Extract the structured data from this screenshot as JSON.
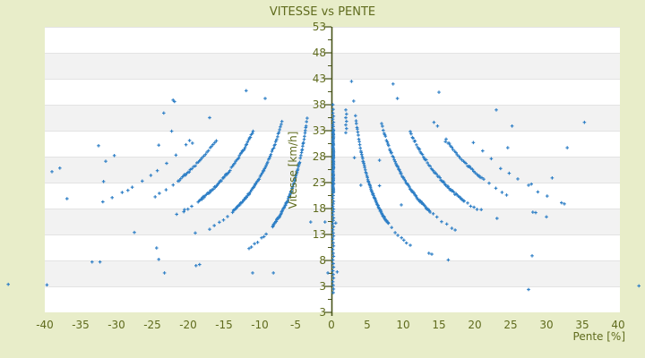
{
  "title": "VITESSE vs PENTE",
  "chart_data": {
    "type": "scatter",
    "title": "VITESSE vs PENTE",
    "xlabel": "Pente [%]",
    "ylabel": "Vitesse [km/h]",
    "xlim": [
      -40,
      40.3
    ],
    "ylim": [
      -2,
      53
    ],
    "grid": "horizontal-stripes",
    "legend": "none",
    "x_ticks": [
      "-40",
      "-35",
      "-30",
      "-25",
      "-20",
      "-15",
      "-10",
      "-5",
      "0",
      "5",
      "10",
      "15",
      "20",
      "25",
      "30",
      "35",
      "40"
    ],
    "y_tick_labels": [
      "53",
      "48",
      "43",
      "38",
      "33",
      "28",
      "23",
      "18",
      "13",
      "8",
      "3",
      "3"
    ],
    "marker": {
      "shape": "plus",
      "color": "#2e7fc6",
      "size": 4
    },
    "colors": {
      "background": "#e8edc9",
      "stripe_a": "#ffffff",
      "stripe_b": "#f2f2f2",
      "stripe_line": "#e3e3e3",
      "axis_line": "#4954142",
      "text": "#5f6b1d"
    },
    "series": [
      {
        "name": "pente-zero-column-dense",
        "column": {
          "x": 0.25,
          "v1": 21.0,
          "v2": 33.5,
          "step": 0.22,
          "xjitter": 0.12,
          "seed": 5
        }
      },
      {
        "name": "pente-zero-column-sparse",
        "points": [
          [
            0.2,
            38
          ],
          [
            0.25,
            37.1
          ],
          [
            0.2,
            36.4
          ],
          [
            0.3,
            35.8
          ],
          [
            0.2,
            35.2
          ],
          [
            0.3,
            34.6
          ],
          [
            0.2,
            34.1
          ],
          [
            0.25,
            33.8
          ],
          [
            0.25,
            20.5
          ],
          [
            0.2,
            20.0
          ],
          [
            0.3,
            19.4
          ],
          [
            0.25,
            18.9
          ],
          [
            0.2,
            18.4
          ],
          [
            0.3,
            17.9
          ],
          [
            0.25,
            17.4
          ],
          [
            0.2,
            16.8
          ],
          [
            0.3,
            16.2
          ],
          [
            0.25,
            15.7
          ],
          [
            0.2,
            15.1
          ],
          [
            0.3,
            14.5
          ],
          [
            0.2,
            13.9
          ],
          [
            0.25,
            13.3
          ],
          [
            0.3,
            12.7
          ],
          [
            0.2,
            12.1
          ],
          [
            0.25,
            11.4
          ],
          [
            0.3,
            10.8
          ],
          [
            0.2,
            10.1
          ],
          [
            0.25,
            9.4
          ],
          [
            0.3,
            8.8
          ],
          [
            0.2,
            8.1
          ],
          [
            0.25,
            7.4
          ],
          [
            0.3,
            6.7
          ],
          [
            0.2,
            6.0
          ],
          [
            0.25,
            5.3
          ],
          [
            0.3,
            4.6
          ],
          [
            0.2,
            3.9
          ],
          [
            0.25,
            3.2
          ],
          [
            0.3,
            2.5
          ],
          [
            0.25,
            1.8
          ],
          [
            2.0,
            37.0
          ],
          [
            2.1,
            36.2
          ],
          [
            2.0,
            35.5
          ],
          [
            2.1,
            34.8
          ],
          [
            2.0,
            34.1
          ],
          [
            2.1,
            33.4
          ],
          [
            2.0,
            32.6
          ],
          [
            -0.9,
            15.4
          ],
          [
            -2.9,
            15.4
          ],
          [
            -0.5,
            5.6
          ],
          [
            0.6,
            15.2
          ],
          [
            0.8,
            5.8
          ]
        ]
      },
      {
        "name": "gear1-right-dense",
        "curve": {
          "k": 120,
          "x1": 3.35,
          "x2": 8.0,
          "step": 0.065,
          "seed": 11
        }
      },
      {
        "name": "gear1-right-tail",
        "curve": {
          "k": 120,
          "x1": 8.4,
          "x2": 11.3,
          "step": 0.42,
          "seed": 12
        }
      },
      {
        "name": "gear2-right-dense",
        "curve": {
          "k": 240,
          "x1": 7.0,
          "x2": 13.8,
          "step": 0.11,
          "seed": 13
        }
      },
      {
        "name": "gear2-right-tail",
        "curve": {
          "k": 240,
          "x1": 14.2,
          "x2": 17.3,
          "step": 0.55,
          "seed": 14
        }
      },
      {
        "name": "gear3-right-dense",
        "curve": {
          "k": 360,
          "x1": 11.0,
          "x2": 18.6,
          "step": 0.14,
          "seed": 15
        }
      },
      {
        "name": "gear3-right-tail",
        "curve": {
          "k": 360,
          "x1": 19.0,
          "x2": 20.6,
          "step": 0.6,
          "seed": 16
        }
      },
      {
        "name": "gear4-right-dense",
        "curve": {
          "k": 500,
          "x1": 16.0,
          "x2": 21.4,
          "step": 0.2,
          "seed": 17
        }
      },
      {
        "name": "gear4-right-tail",
        "curve": {
          "k": 500,
          "x1": 22.0,
          "x2": 24.6,
          "step": 0.8,
          "seed": 18
        }
      },
      {
        "name": "gear1-left-dense",
        "curve": {
          "k": 120,
          "x1": -8.2,
          "x2": -3.3,
          "step": 0.07,
          "seed": 21
        }
      },
      {
        "name": "gear1-left-tail",
        "curve": {
          "k": 120,
          "x1": -11.5,
          "x2": -8.6,
          "step": 0.45,
          "seed": 22
        }
      },
      {
        "name": "gear2-left-dense",
        "curve": {
          "k": 240,
          "x1": -13.8,
          "x2": -6.9,
          "step": 0.11,
          "seed": 23
        }
      },
      {
        "name": "gear2-left-tail",
        "curve": {
          "k": 240,
          "x1": -17.0,
          "x2": -14.2,
          "step": 0.55,
          "seed": 24
        }
      },
      {
        "name": "gear3-left-dense",
        "curve": {
          "k": 360,
          "x1": -18.6,
          "x2": -10.9,
          "step": 0.14,
          "seed": 25
        }
      },
      {
        "name": "gear3-left-tail",
        "curve": {
          "k": 360,
          "x1": -20.6,
          "x2": -19.0,
          "step": 0.6,
          "seed": 26
        }
      },
      {
        "name": "gear4-left-dense",
        "curve": {
          "k": 500,
          "x1": -21.4,
          "x2": -15.9,
          "step": 0.2,
          "seed": 27
        }
      },
      {
        "name": "gear4-left-tail",
        "curve": {
          "k": 500,
          "x1": -24.6,
          "x2": -22.0,
          "step": 0.8,
          "seed": 28
        }
      },
      {
        "name": "gear5-right-sparse",
        "points": [
          [
            19.8,
            30.7
          ],
          [
            21.1,
            29.1
          ],
          [
            22.3,
            27.6
          ],
          [
            23.6,
            25.7
          ],
          [
            24.8,
            24.8
          ],
          [
            26.0,
            23.7
          ],
          [
            27.5,
            22.5
          ],
          [
            27.9,
            22.7
          ],
          [
            28.8,
            21.2
          ],
          [
            30.1,
            20.4
          ],
          [
            32.1,
            19.1
          ],
          [
            32.5,
            18.9
          ]
        ]
      },
      {
        "name": "gear5-left-sparse",
        "points": [
          [
            -20.3,
            30.3
          ],
          [
            -21.7,
            28.3
          ],
          [
            -23.0,
            26.7
          ],
          [
            -24.3,
            25.3
          ],
          [
            -25.2,
            24.4
          ],
          [
            -26.4,
            23.3
          ],
          [
            -27.8,
            22.1
          ],
          [
            -29.2,
            21.1
          ],
          [
            -30.6,
            20.1
          ],
          [
            -31.9,
            19.3
          ]
        ]
      },
      {
        "name": "outliers-left",
        "points": [
          [
            -45.1,
            3.4
          ],
          [
            -39.7,
            3.3
          ],
          [
            -39.0,
            25.1
          ],
          [
            -37.9,
            25.8
          ],
          [
            -36.9,
            19.9
          ],
          [
            -33.4,
            7.7
          ],
          [
            -32.3,
            7.7
          ],
          [
            -32.5,
            30.1
          ],
          [
            -31.8,
            23.2
          ],
          [
            -31.5,
            27.1
          ],
          [
            -30.3,
            28.2
          ],
          [
            -28.4,
            21.5
          ],
          [
            -27.5,
            13.4
          ],
          [
            -24.4,
            10.4
          ],
          [
            -24.1,
            8.2
          ],
          [
            -23.3,
            5.6
          ],
          [
            -23.4,
            36.4
          ],
          [
            -24.1,
            30.2
          ],
          [
            -22.3,
            32.9
          ],
          [
            -22.1,
            38.9
          ],
          [
            -21.9,
            38.6
          ],
          [
            -21.6,
            16.9
          ],
          [
            -20.5,
            17.8
          ],
          [
            -19.4,
            30.6
          ],
          [
            -19.8,
            31.1
          ],
          [
            -19.0,
            13.3
          ],
          [
            -18.9,
            7.0
          ],
          [
            -18.4,
            7.2
          ],
          [
            -17.0,
            35.5
          ],
          [
            -11.9,
            40.7
          ],
          [
            -11.0,
            5.6
          ],
          [
            -9.25,
            39.2
          ],
          [
            -8.1,
            5.6
          ]
        ]
      },
      {
        "name": "outliers-right",
        "points": [
          [
            2.8,
            42.5
          ],
          [
            3.1,
            38.7
          ],
          [
            3.2,
            27.8
          ],
          [
            4.1,
            22.5
          ],
          [
            6.7,
            27.3
          ],
          [
            6.7,
            22.4
          ],
          [
            8.6,
            42.0
          ],
          [
            9.2,
            39.2
          ],
          [
            9.75,
            18.7
          ],
          [
            13.6,
            9.4
          ],
          [
            14.0,
            9.2
          ],
          [
            14.3,
            34.6
          ],
          [
            14.8,
            33.9
          ],
          [
            15.0,
            40.4
          ],
          [
            15.9,
            30.9
          ],
          [
            16.3,
            8.1
          ],
          [
            20.9,
            17.8
          ],
          [
            23.0,
            37.0
          ],
          [
            23.1,
            16.1
          ],
          [
            24.6,
            29.7
          ],
          [
            25.2,
            33.9
          ],
          [
            27.5,
            2.4
          ],
          [
            28.0,
            8.9
          ],
          [
            28.1,
            17.3
          ],
          [
            28.5,
            17.2
          ],
          [
            30.0,
            16.4
          ],
          [
            30.8,
            23.9
          ],
          [
            32.9,
            29.7
          ],
          [
            35.3,
            34.6
          ],
          [
            42.9,
            3.1
          ]
        ]
      }
    ]
  }
}
